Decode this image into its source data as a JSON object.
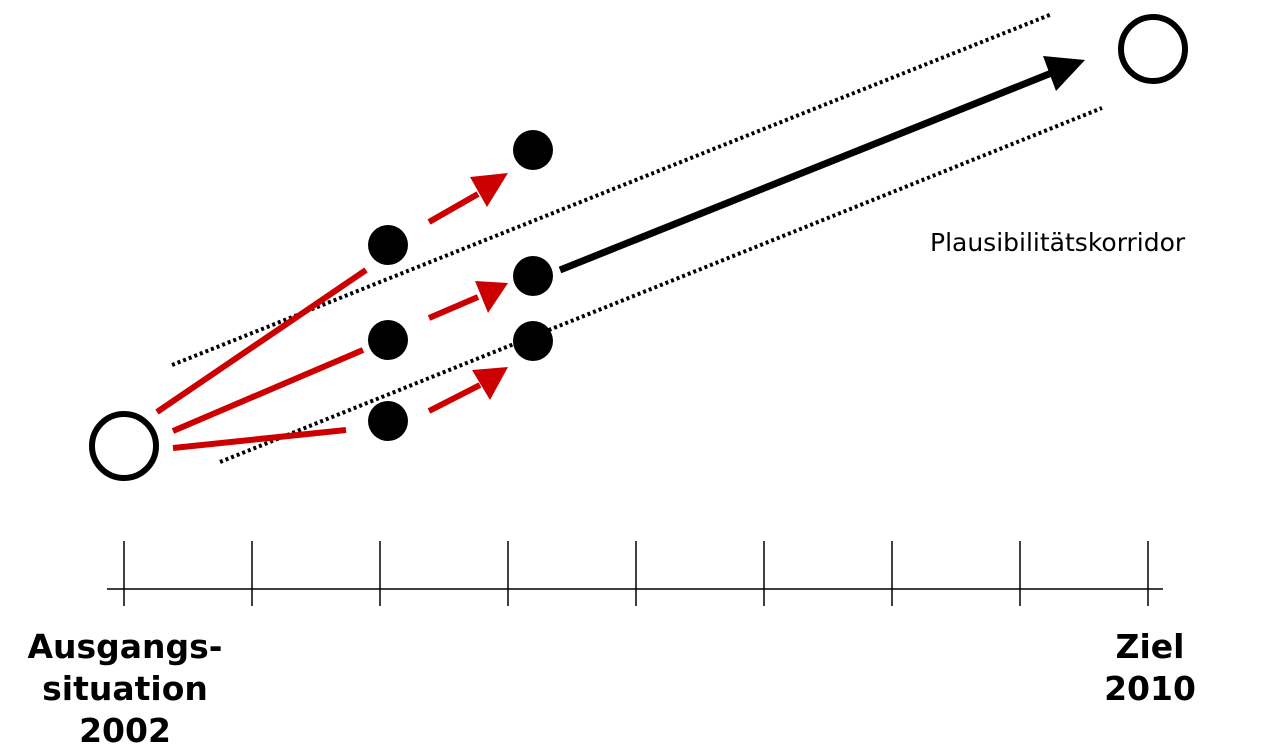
{
  "labels": {
    "corridor": "Plausibilitätskorridor",
    "start": "Ausgangs-\nsituation\n2002",
    "goal": "Ziel\n2010"
  },
  "colors": {
    "red_path": "#cc0000",
    "black": "#000000",
    "background": "#ffffff"
  },
  "timeline": {
    "ticks": 9
  }
}
